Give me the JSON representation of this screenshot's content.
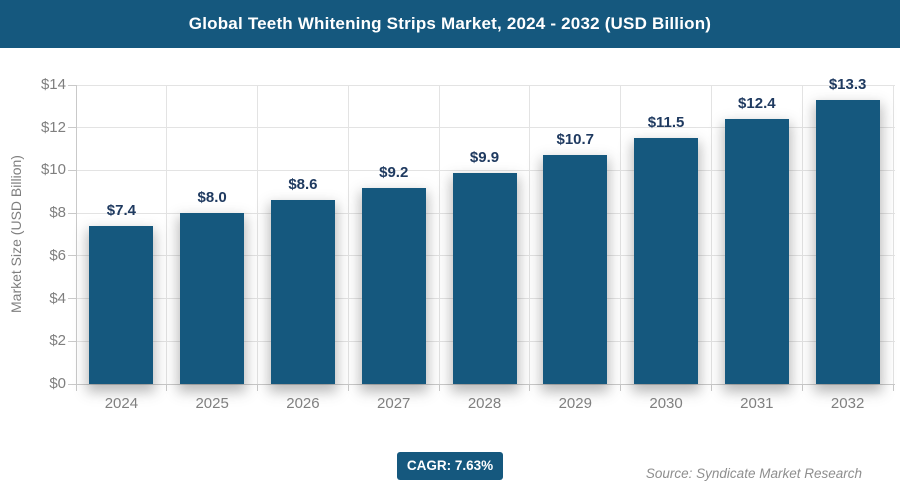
{
  "header": {
    "title": "Global Teeth Whitening Strips Market, 2024 - 2032 (USD Billion)"
  },
  "chart_data": {
    "type": "bar",
    "title": "Global Teeth Whitening Strips Market, 2024 - 2032 (USD Billion)",
    "categories": [
      "2024",
      "2025",
      "2026",
      "2027",
      "2028",
      "2029",
      "2030",
      "2031",
      "2032"
    ],
    "values": [
      7.4,
      8.0,
      8.6,
      9.2,
      9.9,
      10.7,
      11.5,
      12.4,
      13.3
    ],
    "value_labels": [
      "$7.4",
      "$8.0",
      "$8.6",
      "$9.2",
      "$9.9",
      "$10.7",
      "$11.5",
      "$12.4",
      "$13.3"
    ],
    "xlabel": "",
    "ylabel": "Market Size (USD Billion)",
    "ylim": [
      0,
      14
    ],
    "ytick_step": 2,
    "ytick_labels": [
      "$0",
      "$2",
      "$4",
      "$6",
      "$8",
      "$10",
      "$12",
      "$14"
    ],
    "grid": true,
    "legend": "none"
  },
  "footer": {
    "cagr_label": "CAGR: 7.63%",
    "source": "Source: Syndicate Market Research"
  },
  "colors": {
    "accent_blue": "#15587e",
    "value_label": "#1f3a60",
    "axis_text": "#7f7f7f",
    "gridline": "#e3e3e3",
    "axis_line": "#c9c9c9",
    "source_text": "#8e8e8e"
  }
}
